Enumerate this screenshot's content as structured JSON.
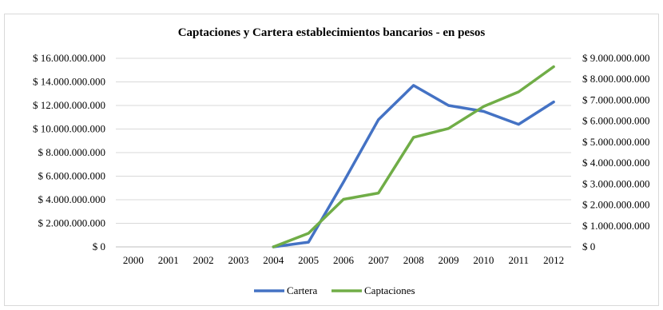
{
  "chart_data": {
    "type": "line",
    "title": "Captaciones y Cartera  establecimientos bancarios - en pesos",
    "categories": [
      "2000",
      "2001",
      "2002",
      "2003",
      "2004",
      "2005",
      "2006",
      "2007",
      "2008",
      "2009",
      "2010",
      "2011",
      "2012"
    ],
    "y_left": {
      "ticks": [
        0,
        2000000000,
        4000000000,
        6000000000,
        8000000000,
        10000000000,
        12000000000,
        14000000000,
        16000000000
      ],
      "tick_labels": [
        "$ 0",
        "$ 2.000.000.000",
        "$ 4.000.000.000",
        "$ 6.000.000.000",
        "$ 8.000.000.000",
        "$ 10.000.000.000",
        "$ 12.000.000.000",
        "$ 14.000.000.000",
        "$ 16.000.000.000"
      ],
      "ylim": [
        0,
        16000000000
      ]
    },
    "y_right": {
      "ticks": [
        0,
        1000000000,
        2000000000,
        3000000000,
        4000000000,
        5000000000,
        6000000000,
        7000000000,
        8000000000,
        9000000000
      ],
      "tick_labels": [
        "$ 0",
        "$ 1.000.000.000",
        "$ 2.000.000.000",
        "$ 3.000.000.000",
        "$ 4.000.000.000",
        "$ 5.000.000.000",
        "$ 6.000.000.000",
        "$ 7.000.000.000",
        "$ 8.000.000.000",
        "$ 9.000.000.000"
      ],
      "ylim": [
        0,
        9000000000
      ]
    },
    "grid": true,
    "legend_position": "bottom",
    "series": [
      {
        "name": "Cartera",
        "axis": "left",
        "color": "#4472c4",
        "values": [
          null,
          null,
          null,
          null,
          0,
          400000000,
          5500000000,
          10800000000,
          13700000000,
          12000000000,
          11500000000,
          10400000000,
          12300000000
        ]
      },
      {
        "name": "Captaciones",
        "axis": "right",
        "color": "#70ad47",
        "values": [
          null,
          null,
          null,
          null,
          0,
          650000000,
          2270000000,
          2570000000,
          5230000000,
          5650000000,
          6700000000,
          7400000000,
          8600000000
        ]
      }
    ]
  }
}
